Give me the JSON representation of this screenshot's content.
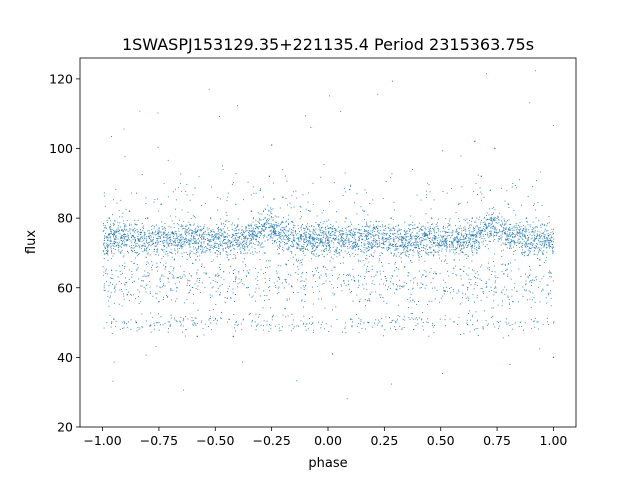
{
  "chart_data": {
    "type": "scatter",
    "title": "1SWASPJ153129.35+221135.4 Period 2315363.75s",
    "xlabel": "phase",
    "ylabel": "flux",
    "xlim": [
      -1.1,
      1.1
    ],
    "ylim": [
      20,
      126
    ],
    "xticks": [
      -1.0,
      -0.75,
      -0.5,
      -0.25,
      0.0,
      0.25,
      0.5,
      0.75,
      1.0
    ],
    "xtick_labels": [
      "−1.00",
      "−0.75",
      "−0.50",
      "−0.25",
      "0.00",
      "0.25",
      "0.50",
      "0.75",
      "1.00"
    ],
    "yticks": [
      20,
      40,
      60,
      80,
      100,
      120
    ],
    "ytick_labels": [
      "20",
      "40",
      "60",
      "80",
      "100",
      "120"
    ],
    "grid": false,
    "marker_color": "#1f77b4",
    "series": [
      {
        "phase_range": [
          -1.0,
          1.0
        ],
        "points": [
          [
            -0.98,
            72
          ],
          [
            -0.97,
            80
          ],
          [
            -0.96,
            65
          ],
          [
            -0.95,
            51
          ],
          [
            -0.94,
            76
          ],
          [
            -0.92,
            70
          ],
          [
            -0.9,
            78
          ],
          [
            -0.89,
            58
          ],
          [
            -0.88,
            82
          ],
          [
            -0.86,
            67
          ],
          [
            -0.85,
            50
          ],
          [
            -0.84,
            74
          ],
          [
            -0.82,
            62
          ],
          [
            -0.8,
            80
          ],
          [
            -0.79,
            49
          ],
          [
            -0.77,
            71
          ],
          [
            -0.75,
            56
          ],
          [
            -0.74,
            84
          ],
          [
            -0.72,
            66
          ],
          [
            -0.7,
            49
          ],
          [
            -0.69,
            76
          ],
          [
            -0.67,
            60
          ],
          [
            -0.65,
            72
          ],
          [
            -0.63,
            48
          ],
          [
            -0.61,
            78
          ],
          [
            -0.6,
            67
          ],
          [
            -0.58,
            46
          ],
          [
            -0.56,
            74
          ],
          [
            -0.54,
            64
          ],
          [
            -0.52,
            80
          ],
          [
            -0.5,
            70
          ],
          [
            -0.48,
            58
          ],
          [
            -0.46,
            76
          ],
          [
            -0.44,
            68
          ],
          [
            -0.42,
            46
          ],
          [
            -0.4,
            78
          ],
          [
            -0.38,
            72
          ],
          [
            -0.36,
            60
          ],
          [
            -0.34,
            82
          ],
          [
            -0.32,
            75
          ],
          [
            -0.3,
            88
          ],
          [
            -0.28,
            70
          ],
          [
            -0.26,
            92
          ],
          [
            -0.25,
            101
          ],
          [
            -0.24,
            76
          ],
          [
            -0.22,
            63
          ],
          [
            -0.2,
            86
          ],
          [
            -0.19,
            54
          ],
          [
            -0.18,
            74
          ],
          [
            -0.16,
            79
          ],
          [
            -0.14,
            68
          ],
          [
            -0.12,
            75
          ],
          [
            -0.1,
            58
          ],
          [
            -0.08,
            82
          ],
          [
            -0.06,
            72
          ],
          [
            -0.04,
            78
          ],
          [
            -0.02,
            66
          ],
          [
            0.0,
            74
          ],
          [
            0.02,
            41
          ],
          [
            0.03,
            77
          ],
          [
            0.05,
            70
          ],
          [
            0.07,
            62
          ],
          [
            0.08,
            80
          ],
          [
            0.1,
            51
          ],
          [
            0.12,
            73
          ],
          [
            0.14,
            56
          ],
          [
            0.16,
            82
          ],
          [
            0.18,
            50
          ],
          [
            0.2,
            69
          ],
          [
            0.22,
            77
          ],
          [
            0.24,
            49
          ],
          [
            0.26,
            62
          ],
          [
            0.28,
            80
          ],
          [
            0.3,
            48
          ],
          [
            0.32,
            72
          ],
          [
            0.34,
            66
          ],
          [
            0.36,
            78
          ],
          [
            0.38,
            48
          ],
          [
            0.4,
            70
          ],
          [
            0.42,
            61
          ],
          [
            0.44,
            75
          ],
          [
            0.46,
            80
          ],
          [
            0.48,
            64
          ],
          [
            0.5,
            72
          ],
          [
            0.52,
            59
          ],
          [
            0.54,
            78
          ],
          [
            0.56,
            68
          ],
          [
            0.58,
            84
          ],
          [
            0.6,
            73
          ],
          [
            0.62,
            60
          ],
          [
            0.64,
            80
          ],
          [
            0.66,
            70
          ],
          [
            0.68,
            92
          ],
          [
            0.7,
            78
          ],
          [
            0.72,
            88
          ],
          [
            0.74,
            100
          ],
          [
            0.76,
            74
          ],
          [
            0.78,
            64
          ],
          [
            0.8,
            84
          ],
          [
            0.82,
            56
          ],
          [
            0.84,
            76
          ],
          [
            0.86,
            70
          ],
          [
            0.88,
            80
          ],
          [
            0.9,
            62
          ],
          [
            0.92,
            74
          ],
          [
            0.94,
            68
          ],
          [
            0.96,
            78
          ],
          [
            0.98,
            72
          ],
          [
            1.0,
            40
          ]
        ]
      }
    ]
  }
}
